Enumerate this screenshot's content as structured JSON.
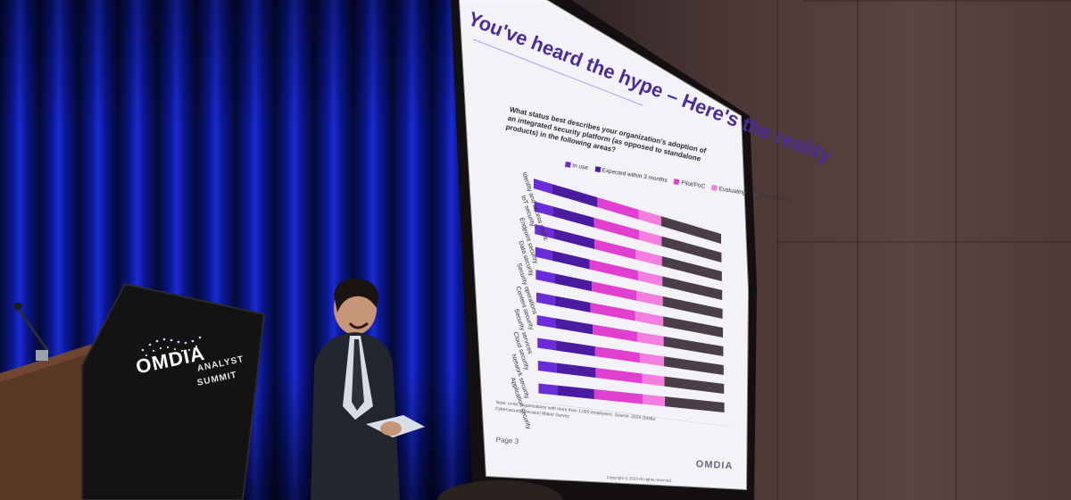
{
  "slide": {
    "title": "You've heard the hype – Here's the reality",
    "question": "What status best describes your organization's adoption of an integrated security platform (as opposed to standalone products) in the following areas?",
    "legend": [
      "In use",
      "Expected within 3 months",
      "Pilot/PoC",
      "Evaluating",
      "Not planned"
    ],
    "categories": [
      "Identity and access mgmt.",
      "IoT security",
      "Endpoint security",
      "Data security",
      "Security operations",
      "Content security",
      "Security services",
      "Cloud security",
      "Network security",
      "Application security"
    ],
    "footnote": "Note: n=##, organizations with more than 1,000 employees. Source: 2024 Omdia Cybersecurity Decision Maker Survey",
    "page_label": "Page 3",
    "copyright": "Copyright © 2024 All rights reserved.",
    "logo_text": "OMDIA"
  },
  "podium": {
    "brand": "OMDIA",
    "line1": "ANALYST",
    "line2": "SUMMIT"
  },
  "colors": {
    "curtain": "#1a2bd0",
    "slide_bg": "#f2f1f6",
    "in_use": "#6a2cd9",
    "expected": "#4a1aa0",
    "pilot": "#e03fd0",
    "evaluating": "#f27ee0",
    "not_planned": "#4a3f49",
    "title": "#4b2c9c"
  },
  "icons": [
    "microphone-icon",
    "omdia-wave-logo-icon"
  ]
}
